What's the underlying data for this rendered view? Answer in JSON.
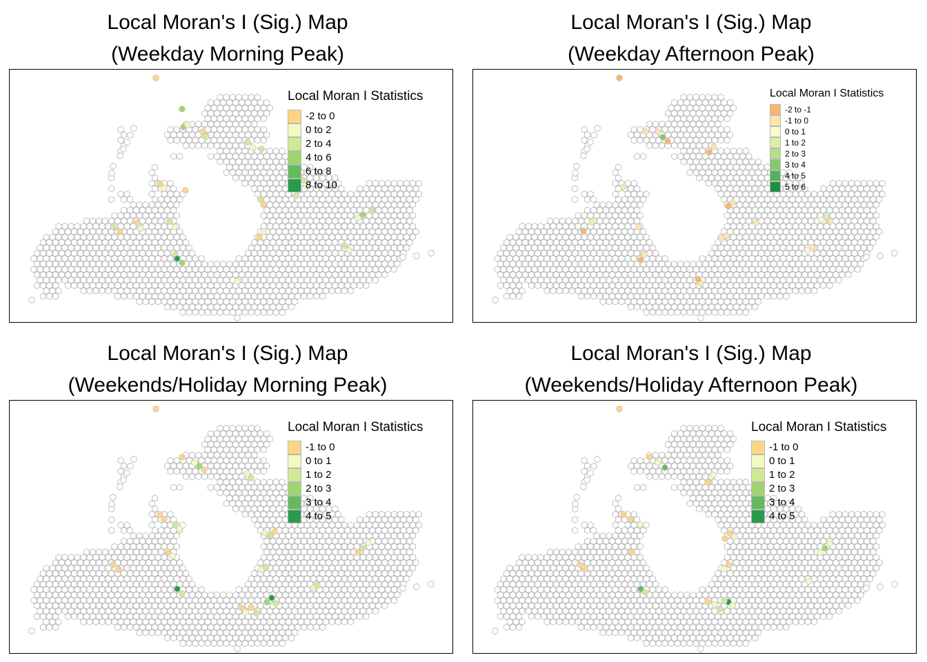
{
  "panels": [
    {
      "title_line1": "Local Moran's I (Sig.) Map",
      "title_line2": "(Weekday Morning Peak)",
      "legend": {
        "title": "Local Moran I Statistics",
        "style": "big",
        "items": [
          {
            "label": "-2 to 0",
            "color": "#fdd684"
          },
          {
            "label": "0 to 2",
            "color": "#f3f9c0"
          },
          {
            "label": "2 to 4",
            "color": "#cfea95"
          },
          {
            "label": "4 to 6",
            "color": "#a0d56e"
          },
          {
            "label": "6 to 8",
            "color": "#64bb5e"
          },
          {
            "label": "8 to 10",
            "color": "#2a9a4c"
          }
        ]
      }
    },
    {
      "title_line1": "Local Moran's I (Sig.) Map",
      "title_line2": "(Weekday Afternoon Peak)",
      "legend": {
        "title": "Local Moran I Statistics",
        "style": "small",
        "items": [
          {
            "label": "-2 to -1",
            "color": "#fbb56a"
          },
          {
            "label": "-1 to 0",
            "color": "#fee6a8"
          },
          {
            "label": "0 to 1",
            "color": "#f7fbc8"
          },
          {
            "label": "1 to 2",
            "color": "#dcf0a4"
          },
          {
            "label": "2 to 3",
            "color": "#b6df86"
          },
          {
            "label": "3 to 4",
            "color": "#86c86a"
          },
          {
            "label": "4 to 5",
            "color": "#52b25a"
          },
          {
            "label": "5 to 6",
            "color": "#1f8f46"
          }
        ]
      }
    },
    {
      "title_line1": "Local Moran's I (Sig.) Map",
      "title_line2": "(Weekends/Holiday Morning Peak)",
      "legend": {
        "title": "Local Moran I Statistics",
        "style": "big",
        "items": [
          {
            "label": "-1 to 0",
            "color": "#fdd684"
          },
          {
            "label": "0 to 1",
            "color": "#f3f9c0"
          },
          {
            "label": "1 to 2",
            "color": "#cfea95"
          },
          {
            "label": "2 to 3",
            "color": "#a0d56e"
          },
          {
            "label": "3 to 4",
            "color": "#64bb5e"
          },
          {
            "label": "4 to 5",
            "color": "#2a9a4c"
          }
        ]
      }
    },
    {
      "title_line1": "Local Moran's I (Sig.) Map",
      "title_line2": "(Weekends/Holiday Afternoon Peak)",
      "legend": {
        "title": "Local Moran I Statistics",
        "style": "big",
        "items": [
          {
            "label": "-1 to 0",
            "color": "#fdd684"
          },
          {
            "label": "0 to 1",
            "color": "#f3f9c0"
          },
          {
            "label": "1 to 2",
            "color": "#cfea95"
          },
          {
            "label": "2 to 3",
            "color": "#a0d56e"
          },
          {
            "label": "3 to 4",
            "color": "#64bb5e"
          },
          {
            "label": "4 to 5",
            "color": "#2a9a4c"
          }
        ]
      }
    }
  ],
  "colors": {
    "hex_outline": "#bdbdbd",
    "frame": "#000000"
  }
}
